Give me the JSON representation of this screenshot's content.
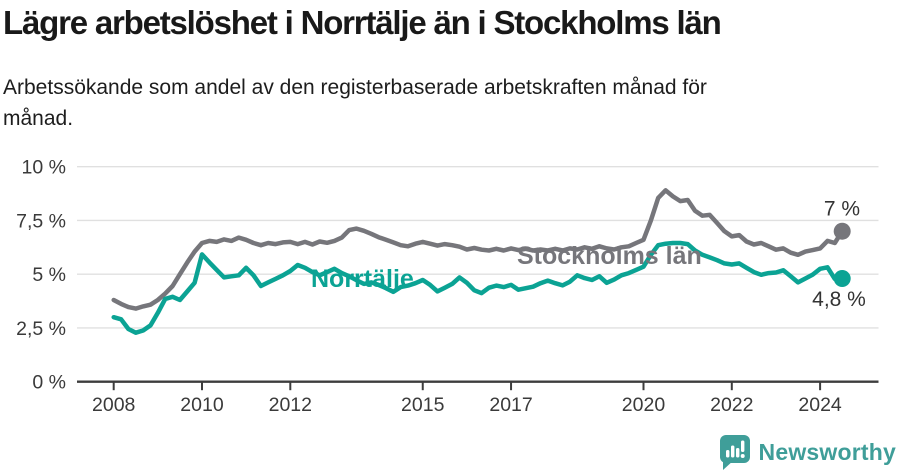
{
  "header": {
    "title": "Lägre arbetslöshet i Norrtälje än i Stockholms län",
    "subtitle": "Arbetssökande som andel av den registerbaserade arbetskraften månad för månad.",
    "subtitle_line1": "Arbetssökande som andel av den registerbaserade arbetskraften månad för",
    "subtitle_line2": "månad."
  },
  "chart_data": {
    "type": "line",
    "title": "Lägre arbetslöshet i Norrtälje än i Stockholms län",
    "subtitle": "Arbetssökande som andel av den registerbaserade arbetskraften månad för månad.",
    "grid": true,
    "legend_position": "inline-labels",
    "ylim": [
      0,
      10.5
    ],
    "ylabel": "",
    "xlabel": "",
    "x_start_year": 2008,
    "x_end_year": 2024.5,
    "x_points_per_year": 6,
    "y_ticks": [
      {
        "value": 0,
        "label": "0 %"
      },
      {
        "value": 2.5,
        "label": "2,5 %"
      },
      {
        "value": 5,
        "label": "5 %"
      },
      {
        "value": 7.5,
        "label": "7,5 %"
      },
      {
        "value": 10,
        "label": "10 %"
      }
    ],
    "x_ticks": [
      {
        "year": 2008,
        "label": "2008"
      },
      {
        "year": 2010,
        "label": "2010"
      },
      {
        "year": 2012,
        "label": "2012"
      },
      {
        "year": 2015,
        "label": "2015"
      },
      {
        "year": 2017,
        "label": "2017"
      },
      {
        "year": 2020,
        "label": "2020"
      },
      {
        "year": 2022,
        "label": "2022"
      },
      {
        "year": 2024,
        "label": "2024"
      }
    ],
    "series": [
      {
        "name": "Stockholms län",
        "color": "#76767b",
        "end_label": "7 %",
        "end_value": 7.0,
        "values": [
          3.8,
          3.62,
          3.47,
          3.4,
          3.5,
          3.58,
          3.8,
          4.1,
          4.45,
          5.0,
          5.55,
          6.05,
          6.45,
          6.55,
          6.5,
          6.62,
          6.55,
          6.7,
          6.6,
          6.45,
          6.35,
          6.45,
          6.4,
          6.48,
          6.5,
          6.4,
          6.5,
          6.38,
          6.52,
          6.46,
          6.55,
          6.7,
          7.05,
          7.12,
          7.02,
          6.88,
          6.72,
          6.6,
          6.48,
          6.35,
          6.3,
          6.42,
          6.5,
          6.42,
          6.33,
          6.4,
          6.35,
          6.28,
          6.15,
          6.22,
          6.14,
          6.1,
          6.18,
          6.1,
          6.2,
          6.12,
          6.18,
          6.1,
          6.15,
          6.1,
          6.18,
          6.1,
          6.2,
          6.15,
          6.25,
          6.18,
          6.3,
          6.2,
          6.15,
          6.25,
          6.3,
          6.45,
          6.6,
          7.5,
          8.55,
          8.9,
          8.62,
          8.4,
          8.45,
          7.95,
          7.72,
          7.76,
          7.38,
          7.0,
          6.76,
          6.82,
          6.52,
          6.38,
          6.45,
          6.3,
          6.14,
          6.2,
          6.0,
          5.9,
          6.05,
          6.12,
          6.2,
          6.55,
          6.45,
          7.0
        ]
      },
      {
        "name": "Norrtälje",
        "color": "#0ba394",
        "end_label": "4,8 %",
        "end_value": 4.8,
        "values": [
          3.0,
          2.9,
          2.45,
          2.28,
          2.38,
          2.62,
          3.2,
          3.85,
          3.95,
          3.8,
          4.2,
          4.6,
          5.92,
          5.55,
          5.2,
          4.85,
          4.9,
          4.95,
          5.3,
          4.95,
          4.45,
          4.62,
          4.78,
          4.95,
          5.15,
          5.43,
          5.3,
          5.1,
          4.95,
          5.1,
          5.25,
          5.05,
          4.9,
          4.72,
          4.55,
          4.62,
          4.5,
          4.35,
          4.18,
          4.4,
          4.47,
          4.58,
          4.73,
          4.5,
          4.2,
          4.37,
          4.55,
          4.85,
          4.6,
          4.25,
          4.12,
          4.37,
          4.47,
          4.4,
          4.5,
          4.28,
          4.35,
          4.42,
          4.58,
          4.7,
          4.58,
          4.48,
          4.65,
          4.95,
          4.82,
          4.73,
          4.9,
          4.6,
          4.75,
          4.95,
          5.05,
          5.2,
          5.35,
          5.9,
          6.35,
          6.42,
          6.45,
          6.45,
          6.4,
          6.1,
          5.9,
          5.78,
          5.65,
          5.5,
          5.45,
          5.5,
          5.3,
          5.1,
          4.97,
          5.05,
          5.08,
          5.18,
          4.9,
          4.62,
          4.8,
          4.98,
          5.25,
          5.32,
          4.78,
          4.8
        ]
      }
    ]
  },
  "footer": {
    "brand": "Newsworthy",
    "brand_color": "#3f9e99",
    "icon": "newsworthy-speech-bubble-bar-chart-icon"
  }
}
